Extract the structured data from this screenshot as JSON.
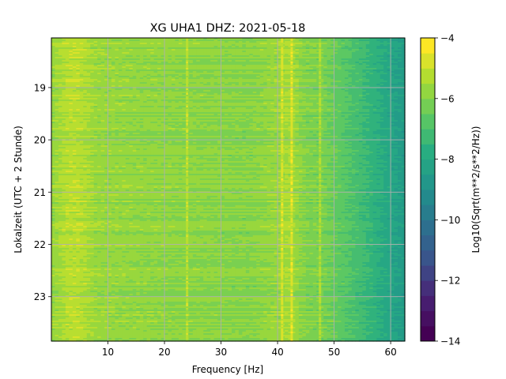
{
  "chart_data": {
    "type": "heatmap",
    "title": "XG UHA1  DHZ: 2021-05-18",
    "xlabel": "Frequency [Hz]",
    "ylabel": "Lokalzeit (UTC + 2 Stunde)",
    "colorbar_label": "Log10(Sqrt(m**2/s**2/Hz))",
    "xlim": [
      0,
      62.5
    ],
    "ylim": [
      18.05,
      23.85
    ],
    "y_inverted": true,
    "x_ticks": [
      10,
      20,
      30,
      40,
      50,
      60
    ],
    "x_tick_labels": [
      "10",
      "20",
      "30",
      "40",
      "50",
      "60"
    ],
    "y_ticks": [
      19,
      20,
      21,
      22,
      23
    ],
    "y_tick_labels": [
      "19",
      "20",
      "21",
      "22",
      "23"
    ],
    "colorbar_range": [
      -14,
      -4
    ],
    "colorbar_ticks": [
      -4,
      -6,
      -8,
      -10,
      -12,
      -14
    ],
    "colorbar_tick_labels": [
      "−4",
      "−6",
      "−8",
      "−10",
      "−12",
      "−14"
    ],
    "colormap": "viridis",
    "grid": true,
    "frequency_profile": {
      "frequency_hz": [
        0,
        3,
        5,
        8,
        15,
        25,
        35,
        40,
        42,
        45,
        48,
        50,
        53,
        56,
        59,
        62.5
      ],
      "log10_amplitude": [
        -5.6,
        -5.0,
        -5.0,
        -5.5,
        -5.6,
        -5.7,
        -5.8,
        -5.5,
        -5.2,
        -5.9,
        -6.0,
        -6.3,
        -6.8,
        -7.3,
        -7.9,
        -8.5
      ]
    },
    "lines": [
      {
        "frequency_hz": 24.0,
        "log10_amplitude": -5.0
      },
      {
        "frequency_hz": 40.8,
        "log10_amplitude": -4.6
      },
      {
        "frequency_hz": 42.5,
        "log10_amplitude": -4.5
      },
      {
        "frequency_hz": 47.5,
        "log10_amplitude": -5.2
      }
    ]
  }
}
